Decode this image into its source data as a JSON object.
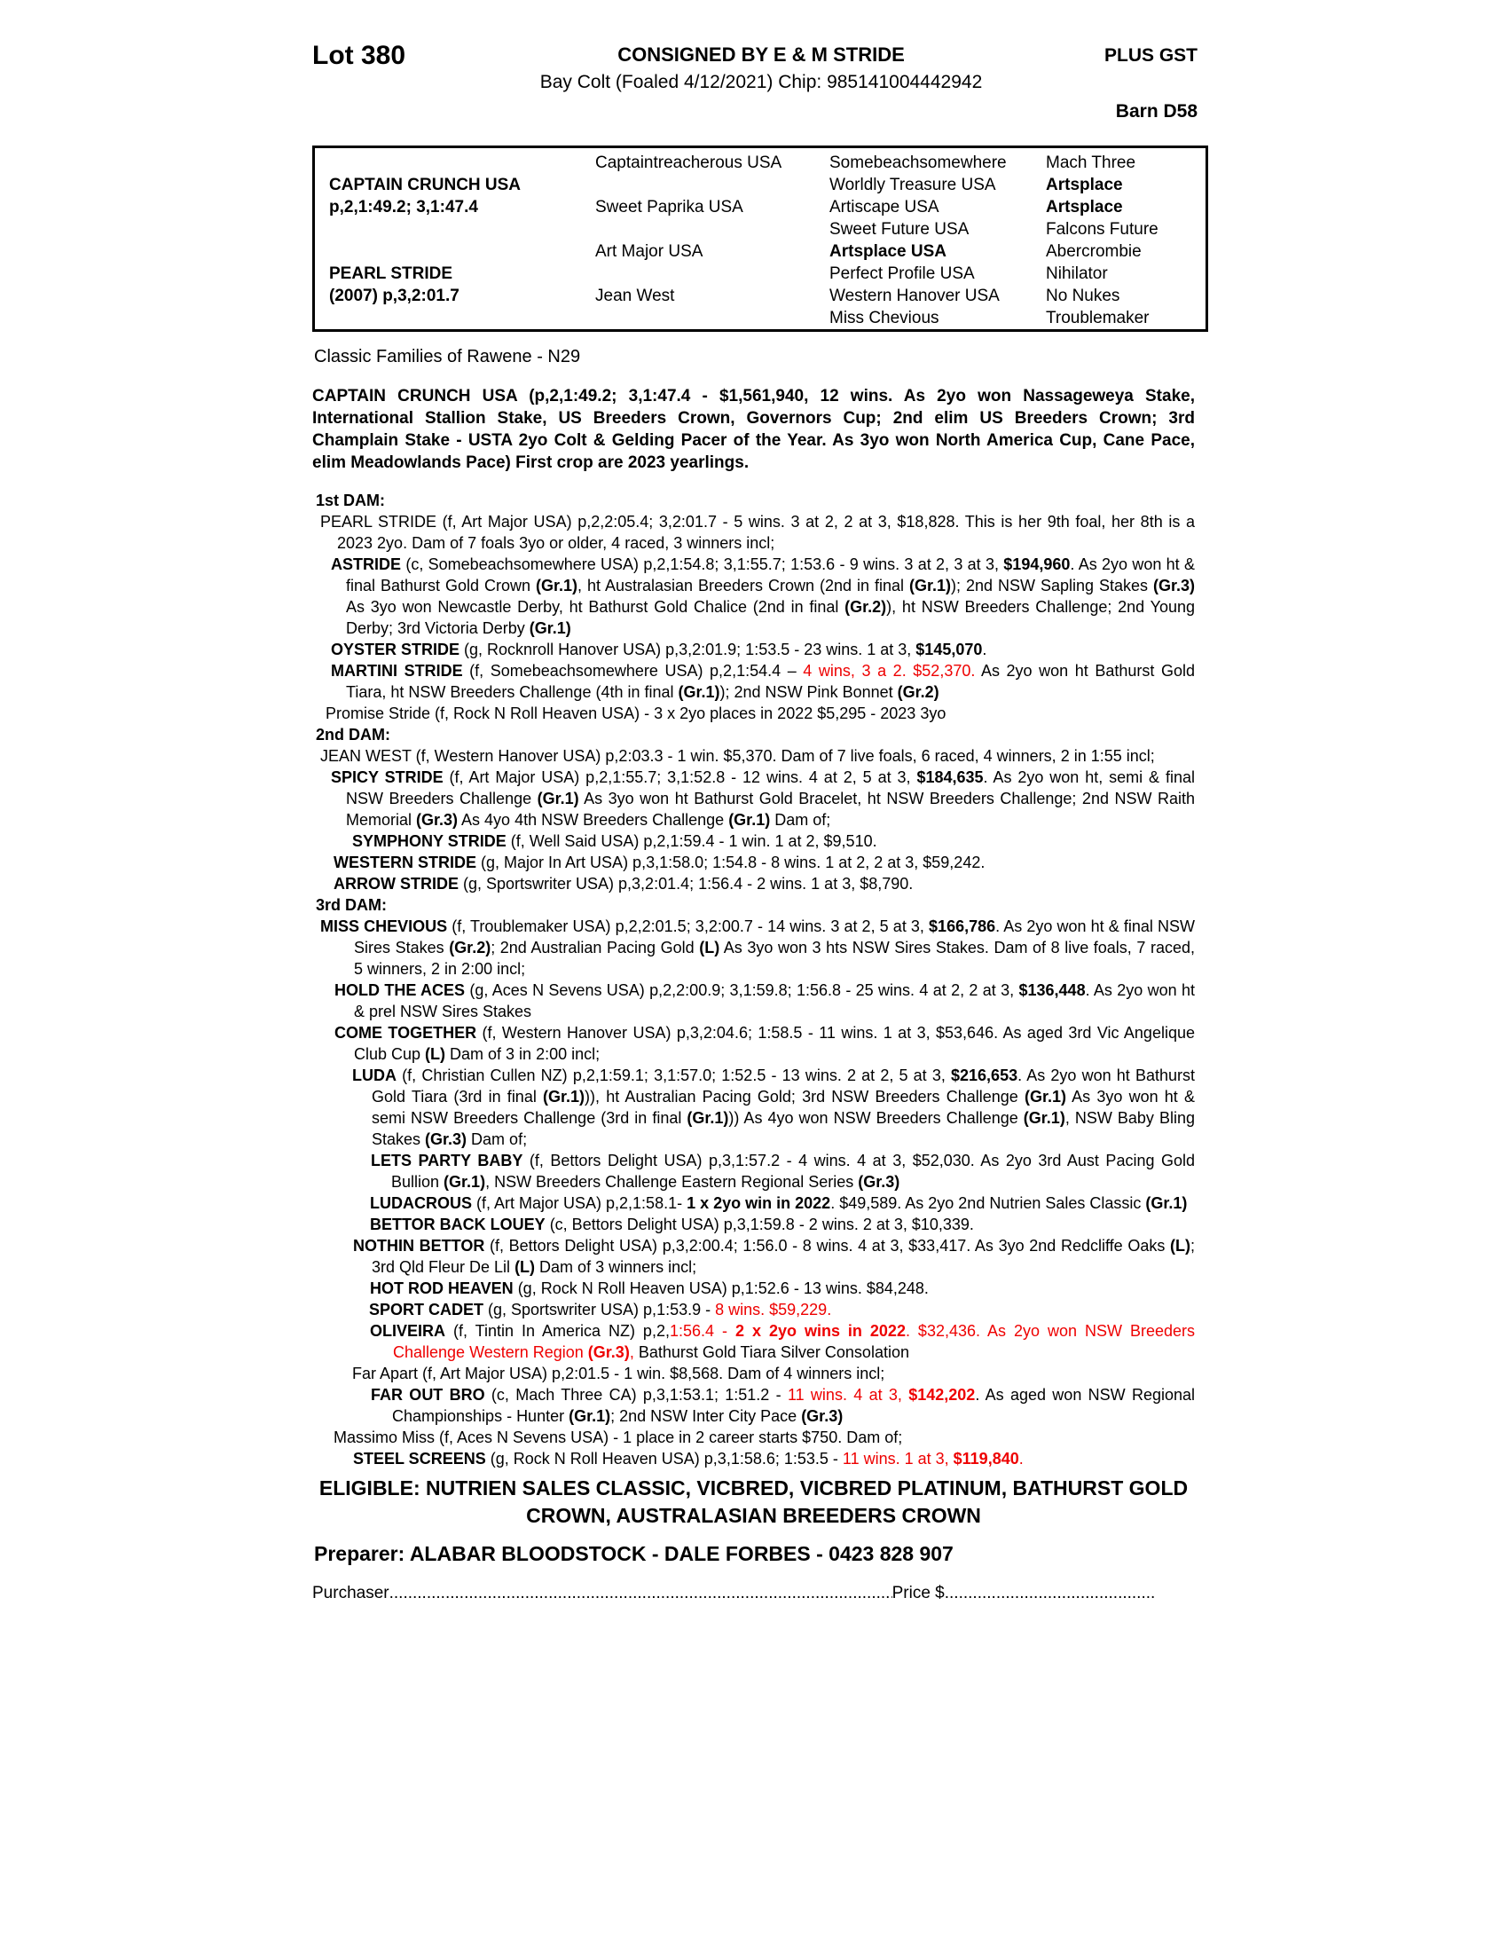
{
  "colors": {
    "accent_red": "#ee0000"
  },
  "header": {
    "lot": "Lot 380",
    "consigned": "CONSIGNED BY E & M STRIDE",
    "foaling": "Bay Colt (Foaled 4/12/2021) Chip: 985141004442942",
    "plus_gst": "PLUS GST",
    "barn": "Barn D58"
  },
  "pedigree": {
    "rows": [
      [
        null,
        {
          "t": "Captaintreacherous USA",
          "b": false
        },
        {
          "t": "Somebeachsomewhere",
          "b": false
        },
        {
          "t": "Mach Three",
          "b": false
        }
      ],
      [
        {
          "t": "CAPTAIN CRUNCH USA",
          "b": true
        },
        null,
        {
          "t": "Worldly Treasure USA",
          "b": false
        },
        {
          "t": "Artsplace",
          "b": true
        }
      ],
      [
        {
          "t": "p,2,1:49.2; 3,1:47.4",
          "b": true
        },
        {
          "t": "Sweet Paprika USA",
          "b": false
        },
        {
          "t": "Artiscape USA",
          "b": false
        },
        {
          "t": "Artsplace",
          "b": true
        }
      ],
      [
        null,
        null,
        {
          "t": "Sweet Future USA",
          "b": false
        },
        {
          "t": "Falcons Future",
          "b": false
        }
      ],
      [
        null,
        {
          "t": "Art Major USA",
          "b": false
        },
        {
          "t": "Artsplace USA",
          "b": true
        },
        {
          "t": "Abercrombie",
          "b": false
        }
      ],
      [
        {
          "t": "PEARL STRIDE",
          "b": true
        },
        null,
        {
          "t": "Perfect Profile USA",
          "b": false
        },
        {
          "t": "Nihilator",
          "b": false
        }
      ],
      [
        {
          "t": "(2007) p,3,2:01.7",
          "b": true
        },
        {
          "t": "Jean West",
          "b": false
        },
        {
          "t": "Western Hanover USA",
          "b": false
        },
        {
          "t": "No Nukes",
          "b": false
        }
      ],
      [
        null,
        null,
        {
          "t": "Miss Chevious",
          "b": false
        },
        {
          "t": "Troublemaker",
          "b": false
        }
      ]
    ]
  },
  "family_note": "Classic Families of Rawene - N29",
  "sire_paragraph": "CAPTAIN CRUNCH USA (p,2,1:49.2; 3,1:47.4 - $1,561,940, 12 wins. As 2yo won Nassageweya Stake, International Stallion Stake, US Breeders Crown, Governors Cup; 2nd elim US Breeders Crown; 3rd Champlain Stake - USTA 2yo Colt & Gelding Pacer of the Year. As 3yo won North America Cup, Cane Pace, elim Meadowlands Pace) First crop are 2023 yearlings.",
  "entries": [
    {
      "label": "1st DAM:"
    },
    {
      "ind": 9,
      "hang": 28,
      "segs": [
        {
          "t": "PEARL STRIDE (f, Art Major USA) p,2,2:05.4; 3,2:01.7 - 5 wins. 3 at 2, 2 at 3, $18,828. This is her 9th foal, her 8th is a 2023 2yo. Dam of 7 foals 3yo or older, 4 raced, 3 winners incl;",
          "s": ""
        }
      ]
    },
    {
      "ind": 21,
      "hang": 38,
      "segs": [
        {
          "t": "ASTRIDE",
          "s": "b"
        },
        {
          "t": " (c, Somebeachsomewhere USA) p,2,1:54.8; 3,1:55.7; 1:53.6 - 9 wins. 3 at 2, 3 at 3, ",
          "s": ""
        },
        {
          "t": "$194,960",
          "s": "b"
        },
        {
          "t": ". As 2yo won ht & final Bathurst Gold Crown ",
          "s": ""
        },
        {
          "t": "(Gr.1)",
          "s": "b"
        },
        {
          "t": ", ht Australasian Breeders Crown (2nd in final ",
          "s": ""
        },
        {
          "t": "(Gr.1)",
          "s": "b"
        },
        {
          "t": "); 2nd NSW Sapling Stakes ",
          "s": ""
        },
        {
          "t": "(Gr.3)",
          "s": "b"
        },
        {
          "t": " As 3yo won Newcastle Derby, ht Bathurst Gold Chalice (2nd in final ",
          "s": ""
        },
        {
          "t": "(Gr.2)",
          "s": "b"
        },
        {
          "t": "), ht NSW Breeders Challenge; 2nd Young Derby; 3rd Victoria Derby ",
          "s": ""
        },
        {
          "t": "(Gr.1)",
          "s": "b"
        }
      ]
    },
    {
      "ind": 21,
      "hang": 38,
      "segs": [
        {
          "t": "OYSTER STRIDE",
          "s": "b"
        },
        {
          "t": " (g, Rocknroll Hanover USA) p,3,2:01.9; 1:53.5 - 23 wins. 1 at 3, ",
          "s": ""
        },
        {
          "t": "$145,070",
          "s": "b"
        },
        {
          "t": ".",
          "s": ""
        }
      ]
    },
    {
      "ind": 21,
      "hang": 38,
      "segs": [
        {
          "t": "MARTINI STRIDE",
          "s": "b"
        },
        {
          "t": " (f, Somebeachsomewhere USA) p,2,1:54.4 – ",
          "s": ""
        },
        {
          "t": "4 wins, 3 a 2. $52,370.",
          "s": "r"
        },
        {
          "t": " As 2yo won ht Bathurst Gold Tiara, ht NSW Breeders Challenge (4th in final ",
          "s": ""
        },
        {
          "t": "(Gr.1)",
          "s": "b"
        },
        {
          "t": "); 2nd NSW Pink Bonnet ",
          "s": ""
        },
        {
          "t": "(Gr.2)",
          "s": "b"
        }
      ]
    },
    {
      "ind": 15,
      "hang": 28,
      "segs": [
        {
          "t": "Promise Stride (f, Rock N Roll Heaven USA) - 3 x 2yo places in 2022 $5,295 - 2023 3yo",
          "s": ""
        }
      ]
    },
    {
      "label": "2nd DAM:"
    },
    {
      "ind": 9,
      "hang": 28,
      "segs": [
        {
          "t": "JEAN WEST (f, Western Hanover USA) p,2:03.3 - 1 win. $5,370. Dam of 7 live foals, 6 raced, 4 winners, 2 in 1:55 incl;",
          "s": ""
        }
      ]
    },
    {
      "ind": 21,
      "hang": 38,
      "segs": [
        {
          "t": "SPICY STRIDE",
          "s": "b"
        },
        {
          "t": " (f, Art Major USA) p,2,1:55.7; 3,1:52.8 - 12 wins. 4 at 2, 5 at 3, ",
          "s": ""
        },
        {
          "t": "$184,635",
          "s": "b"
        },
        {
          "t": ". As 2yo won ht, semi & final NSW Breeders Challenge ",
          "s": ""
        },
        {
          "t": "(Gr.1)",
          "s": "b"
        },
        {
          "t": " As 3yo won ht Bathurst Gold Bracelet, ht NSW Breeders Challenge; 2nd NSW Raith Memorial ",
          "s": ""
        },
        {
          "t": "(Gr.3)",
          "s": "b"
        },
        {
          "t": " As 4yo 4th NSW Breeders Challenge ",
          "s": ""
        },
        {
          "t": "(Gr.1)",
          "s": "b"
        },
        {
          "t": " Dam of;",
          "s": ""
        }
      ]
    },
    {
      "ind": 45,
      "hang": 56,
      "segs": [
        {
          "t": "SYMPHONY STRIDE",
          "s": "b"
        },
        {
          "t": " (f, Well Said USA) p,2,1:59.4 - 1 win. 1 at 2, $9,510.",
          "s": ""
        }
      ]
    },
    {
      "ind": 24,
      "hang": 38,
      "segs": [
        {
          "t": "WESTERN STRIDE",
          "s": "b"
        },
        {
          "t": " (g, Major In Art USA) p,3,1:58.0; 1:54.8 - 8 wins. 1 at 2, 2 at 3, $59,242.",
          "s": ""
        }
      ]
    },
    {
      "ind": 24,
      "hang": 38,
      "segs": [
        {
          "t": "ARROW STRIDE",
          "s": "b"
        },
        {
          "t": " (g, Sportswriter USA) p,3,2:01.4; 1:56.4 - 2 wins. 1 at 3, $8,790.",
          "s": ""
        }
      ]
    },
    {
      "label": "3rd DAM:"
    },
    {
      "ind": 9,
      "hang": 47,
      "segs": [
        {
          "t": "MISS CHEVIOUS",
          "s": "b"
        },
        {
          "t": " (f, Troublemaker USA) p,2,2:01.5; 3,2:00.7 - 14 wins. 3 at 2, 5 at 3, ",
          "s": ""
        },
        {
          "t": "$166,786",
          "s": "b"
        },
        {
          "t": ". As 2yo won ht & final NSW Sires Stakes ",
          "s": ""
        },
        {
          "t": "(Gr.2)",
          "s": "b"
        },
        {
          "t": "; 2nd Australian Pacing Gold ",
          "s": ""
        },
        {
          "t": "(L)",
          "s": "b"
        },
        {
          "t": " As 3yo won 3 hts NSW Sires Stakes. Dam of 8 live foals, 7 raced, 5 winners, 2 in 2:00 incl;",
          "s": ""
        }
      ]
    },
    {
      "ind": 25,
      "hang": 47,
      "segs": [
        {
          "t": "HOLD THE ACES",
          "s": "b"
        },
        {
          "t": " (g, Aces N Sevens USA) p,2,2:00.9; 3,1:59.8; 1:56.8 - 25 wins. 4 at 2, 2 at 3, ",
          "s": ""
        },
        {
          "t": "$136,448",
          "s": "b"
        },
        {
          "t": ". As 2yo won ht & prel NSW Sires Stakes",
          "s": ""
        }
      ]
    },
    {
      "ind": 25,
      "hang": 47,
      "segs": [
        {
          "t": "COME TOGETHER",
          "s": "b"
        },
        {
          "t": " (f, Western Hanover USA) p,3,2:04.6; 1:58.5 - 11 wins. 1 at 3, $53,646. As aged 3rd Vic Angelique Club Cup ",
          "s": ""
        },
        {
          "t": "(L)",
          "s": "b"
        },
        {
          "t": " Dam of 3 in 2:00 incl;",
          "s": ""
        }
      ]
    },
    {
      "ind": 45,
      "hang": 67,
      "segs": [
        {
          "t": "LUDA",
          "s": "b"
        },
        {
          "t": " (f, Christian Cullen NZ) p,2,1:59.1; 3,1:57.0; 1:52.5 - 13 wins. 2 at 2, 5 at 3, ",
          "s": ""
        },
        {
          "t": "$216,653",
          "s": "b"
        },
        {
          "t": ". As 2yo won ht Bathurst Gold Tiara (3rd in final ",
          "s": ""
        },
        {
          "t": "(Gr.1)",
          "s": "b"
        },
        {
          "t": ")), ht Australian Pacing Gold; 3rd NSW Breeders Challenge ",
          "s": ""
        },
        {
          "t": "(Gr.1)",
          "s": "b"
        },
        {
          "t": " As 3yo won ht & semi NSW Breeders Challenge (3rd in final ",
          "s": ""
        },
        {
          "t": "(Gr.1)",
          "s": "b"
        },
        {
          "t": ")) As 4yo won NSW Breeders Challenge ",
          "s": ""
        },
        {
          "t": "(Gr.1)",
          "s": "b"
        },
        {
          "t": ", NSW Baby Bling Stakes ",
          "s": ""
        },
        {
          "t": "(Gr.3)",
          "s": "b"
        },
        {
          "t": " Dam of;",
          "s": ""
        }
      ]
    },
    {
      "ind": 66,
      "hang": 89,
      "segs": [
        {
          "t": "LETS PARTY BABY",
          "s": "b"
        },
        {
          "t": " (f, Bettors Delight USA) p,3,1:57.2 - 4 wins. 4 at 3, $52,030. As 2yo 3rd Aust Pacing Gold Bullion ",
          "s": ""
        },
        {
          "t": "(Gr.1)",
          "s": "b"
        },
        {
          "t": ", NSW Breeders Challenge Eastern Regional Series ",
          "s": ""
        },
        {
          "t": "(Gr.3)",
          "s": "b"
        }
      ]
    },
    {
      "ind": 65,
      "hang": 90,
      "segs": [
        {
          "t": "LUDACROUS",
          "s": "b"
        },
        {
          "t": " (f, Art Major USA) p,2,1:58.1- ",
          "s": ""
        },
        {
          "t": "1 x 2yo win in 2022",
          "s": "b"
        },
        {
          "t": ". $49,589. As 2yo 2nd Nutrien Sales Classic ",
          "s": ""
        },
        {
          "t": "(Gr.1)",
          "s": "b"
        }
      ]
    },
    {
      "ind": 65,
      "hang": 90,
      "segs": [
        {
          "t": "BETTOR BACK LOUEY",
          "s": "b"
        },
        {
          "t": " (c, Bettors Delight USA) p,3,1:59.8 - 2 wins. 2 at 3, $10,339.",
          "s": ""
        }
      ]
    },
    {
      "ind": 46,
      "hang": 67,
      "segs": [
        {
          "t": "NOTHIN BETTOR",
          "s": "b"
        },
        {
          "t": " (f, Bettors Delight USA) p,3,2:00.4; 1:56.0 - 8 wins. 4 at 3, $33,417. As 3yo 2nd Redcliffe Oaks ",
          "s": ""
        },
        {
          "t": "(L)",
          "s": "b"
        },
        {
          "t": "; 3rd Qld Fleur De Lil ",
          "s": ""
        },
        {
          "t": "(L)",
          "s": "b"
        },
        {
          "t": " Dam of 3 winners incl;",
          "s": ""
        }
      ]
    },
    {
      "ind": 65,
      "hang": 90,
      "segs": [
        {
          "t": "HOT ROD HEAVEN",
          "s": "b"
        },
        {
          "t": " (g, Rock N Roll Heaven USA) p,1:52.6 - 13 wins. $84,248.",
          "s": ""
        }
      ]
    },
    {
      "ind": 64,
      "hang": 90,
      "segs": [
        {
          "t": "SPORT CADET",
          "s": "b"
        },
        {
          "t": " (g, Sportswriter USA) p,1:53.9 - ",
          "s": ""
        },
        {
          "t": "8 wins. $59,229.",
          "s": "r"
        }
      ]
    },
    {
      "ind": 65,
      "hang": 91,
      "segs": [
        {
          "t": "OLIVEIRA",
          "s": "b"
        },
        {
          "t": " (f, Tintin In America NZ) p,2,",
          "s": ""
        },
        {
          "t": "1:56.4 - ",
          "s": "r"
        },
        {
          "t": "2 x 2yo wins in 2022",
          "s": "rb"
        },
        {
          "t": ". $32,436. As 2yo won NSW Breeders Challenge Western Region ",
          "s": "r"
        },
        {
          "t": "(Gr.3)",
          "s": "rb"
        },
        {
          "t": ",",
          "s": "r"
        },
        {
          "t": " Bathurst Gold Tiara Silver Consolation",
          "s": ""
        }
      ]
    },
    {
      "ind": 45,
      "hang": 67,
      "segs": [
        {
          "t": "Far Apart (f, Art Major USA) p,2:01.5 - 1 win. $8,568. Dam of 4 winners incl;",
          "s": ""
        }
      ]
    },
    {
      "ind": 66,
      "hang": 90,
      "segs": [
        {
          "t": "FAR OUT BRO",
          "s": "b"
        },
        {
          "t": " (c, Mach Three CA) p,3,1:53.1; 1:51.2 - ",
          "s": ""
        },
        {
          "t": "11 wins. 4 at 3, ",
          "s": "r"
        },
        {
          "t": "$142,202",
          "s": "rb"
        },
        {
          "t": ". As aged won NSW Regional Championships - Hunter ",
          "s": ""
        },
        {
          "t": "(Gr.1)",
          "s": "b"
        },
        {
          "t": "; 2nd NSW Inter City Pace ",
          "s": ""
        },
        {
          "t": "(Gr.3)",
          "s": "b"
        }
      ]
    },
    {
      "ind": 24,
      "hang": 47,
      "segs": [
        {
          "t": "Massimo Miss (f, Aces N Sevens USA) - 1 place in 2 career starts $750. Dam of;",
          "s": ""
        }
      ]
    },
    {
      "ind": 46,
      "hang": 67,
      "segs": [
        {
          "t": "STEEL SCREENS",
          "s": "b"
        },
        {
          "t": " (g, Rock N Roll Heaven USA) p,3,1:58.6; 1:53.5 - ",
          "s": ""
        },
        {
          "t": "11 wins. 1 at 3, ",
          "s": "r"
        },
        {
          "t": "$119,840",
          "s": "rb"
        },
        {
          "t": ".",
          "s": "r"
        }
      ]
    }
  ],
  "eligible": "ELIGIBLE: NUTRIEN SALES CLASSIC, VICBRED, VICBRED PLATINUM, BATHURST GOLD CROWN, AUSTRALASIAN BREEDERS CROWN",
  "preparer": "Preparer: ALABAR BLOODSTOCK - DALE FORBES - 0423 828 907",
  "footer": {
    "purchaser_label": "Purchaser",
    "purchaser_dots": "........................................................................................................................................................",
    "price_label": "Price $",
    "price_dots": "........................................................................"
  }
}
